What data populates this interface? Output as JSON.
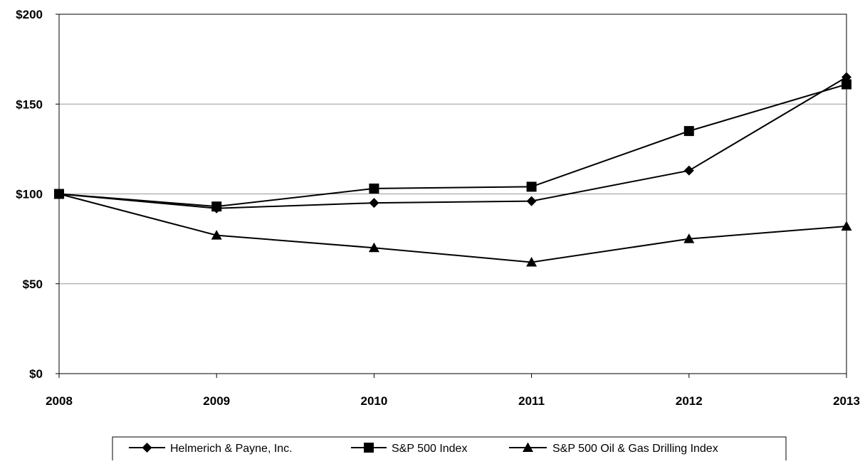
{
  "chart_data": {
    "type": "line",
    "x": [
      "2008",
      "2009",
      "2010",
      "2011",
      "2012",
      "2013"
    ],
    "series": [
      {
        "name": "Helmerich & Payne, Inc.",
        "marker": "diamond",
        "values": [
          100,
          92,
          95,
          96,
          113,
          165
        ]
      },
      {
        "name": "S&P 500 Index",
        "marker": "square",
        "values": [
          100,
          93,
          103,
          104,
          135,
          161
        ]
      },
      {
        "name": "S&P 500 Oil & Gas Drilling Index",
        "marker": "triangle",
        "values": [
          100,
          77,
          70,
          62,
          75,
          82
        ]
      }
    ],
    "y_ticks": [
      "$0",
      "$50",
      "$100",
      "$150",
      "$200"
    ],
    "y_tick_values": [
      0,
      50,
      100,
      150,
      200
    ],
    "ylim": [
      0,
      200
    ],
    "grid": true,
    "legend_position": "bottom",
    "colors": {
      "line": "#000000",
      "grid": "#999999",
      "frame": "#000000"
    }
  }
}
